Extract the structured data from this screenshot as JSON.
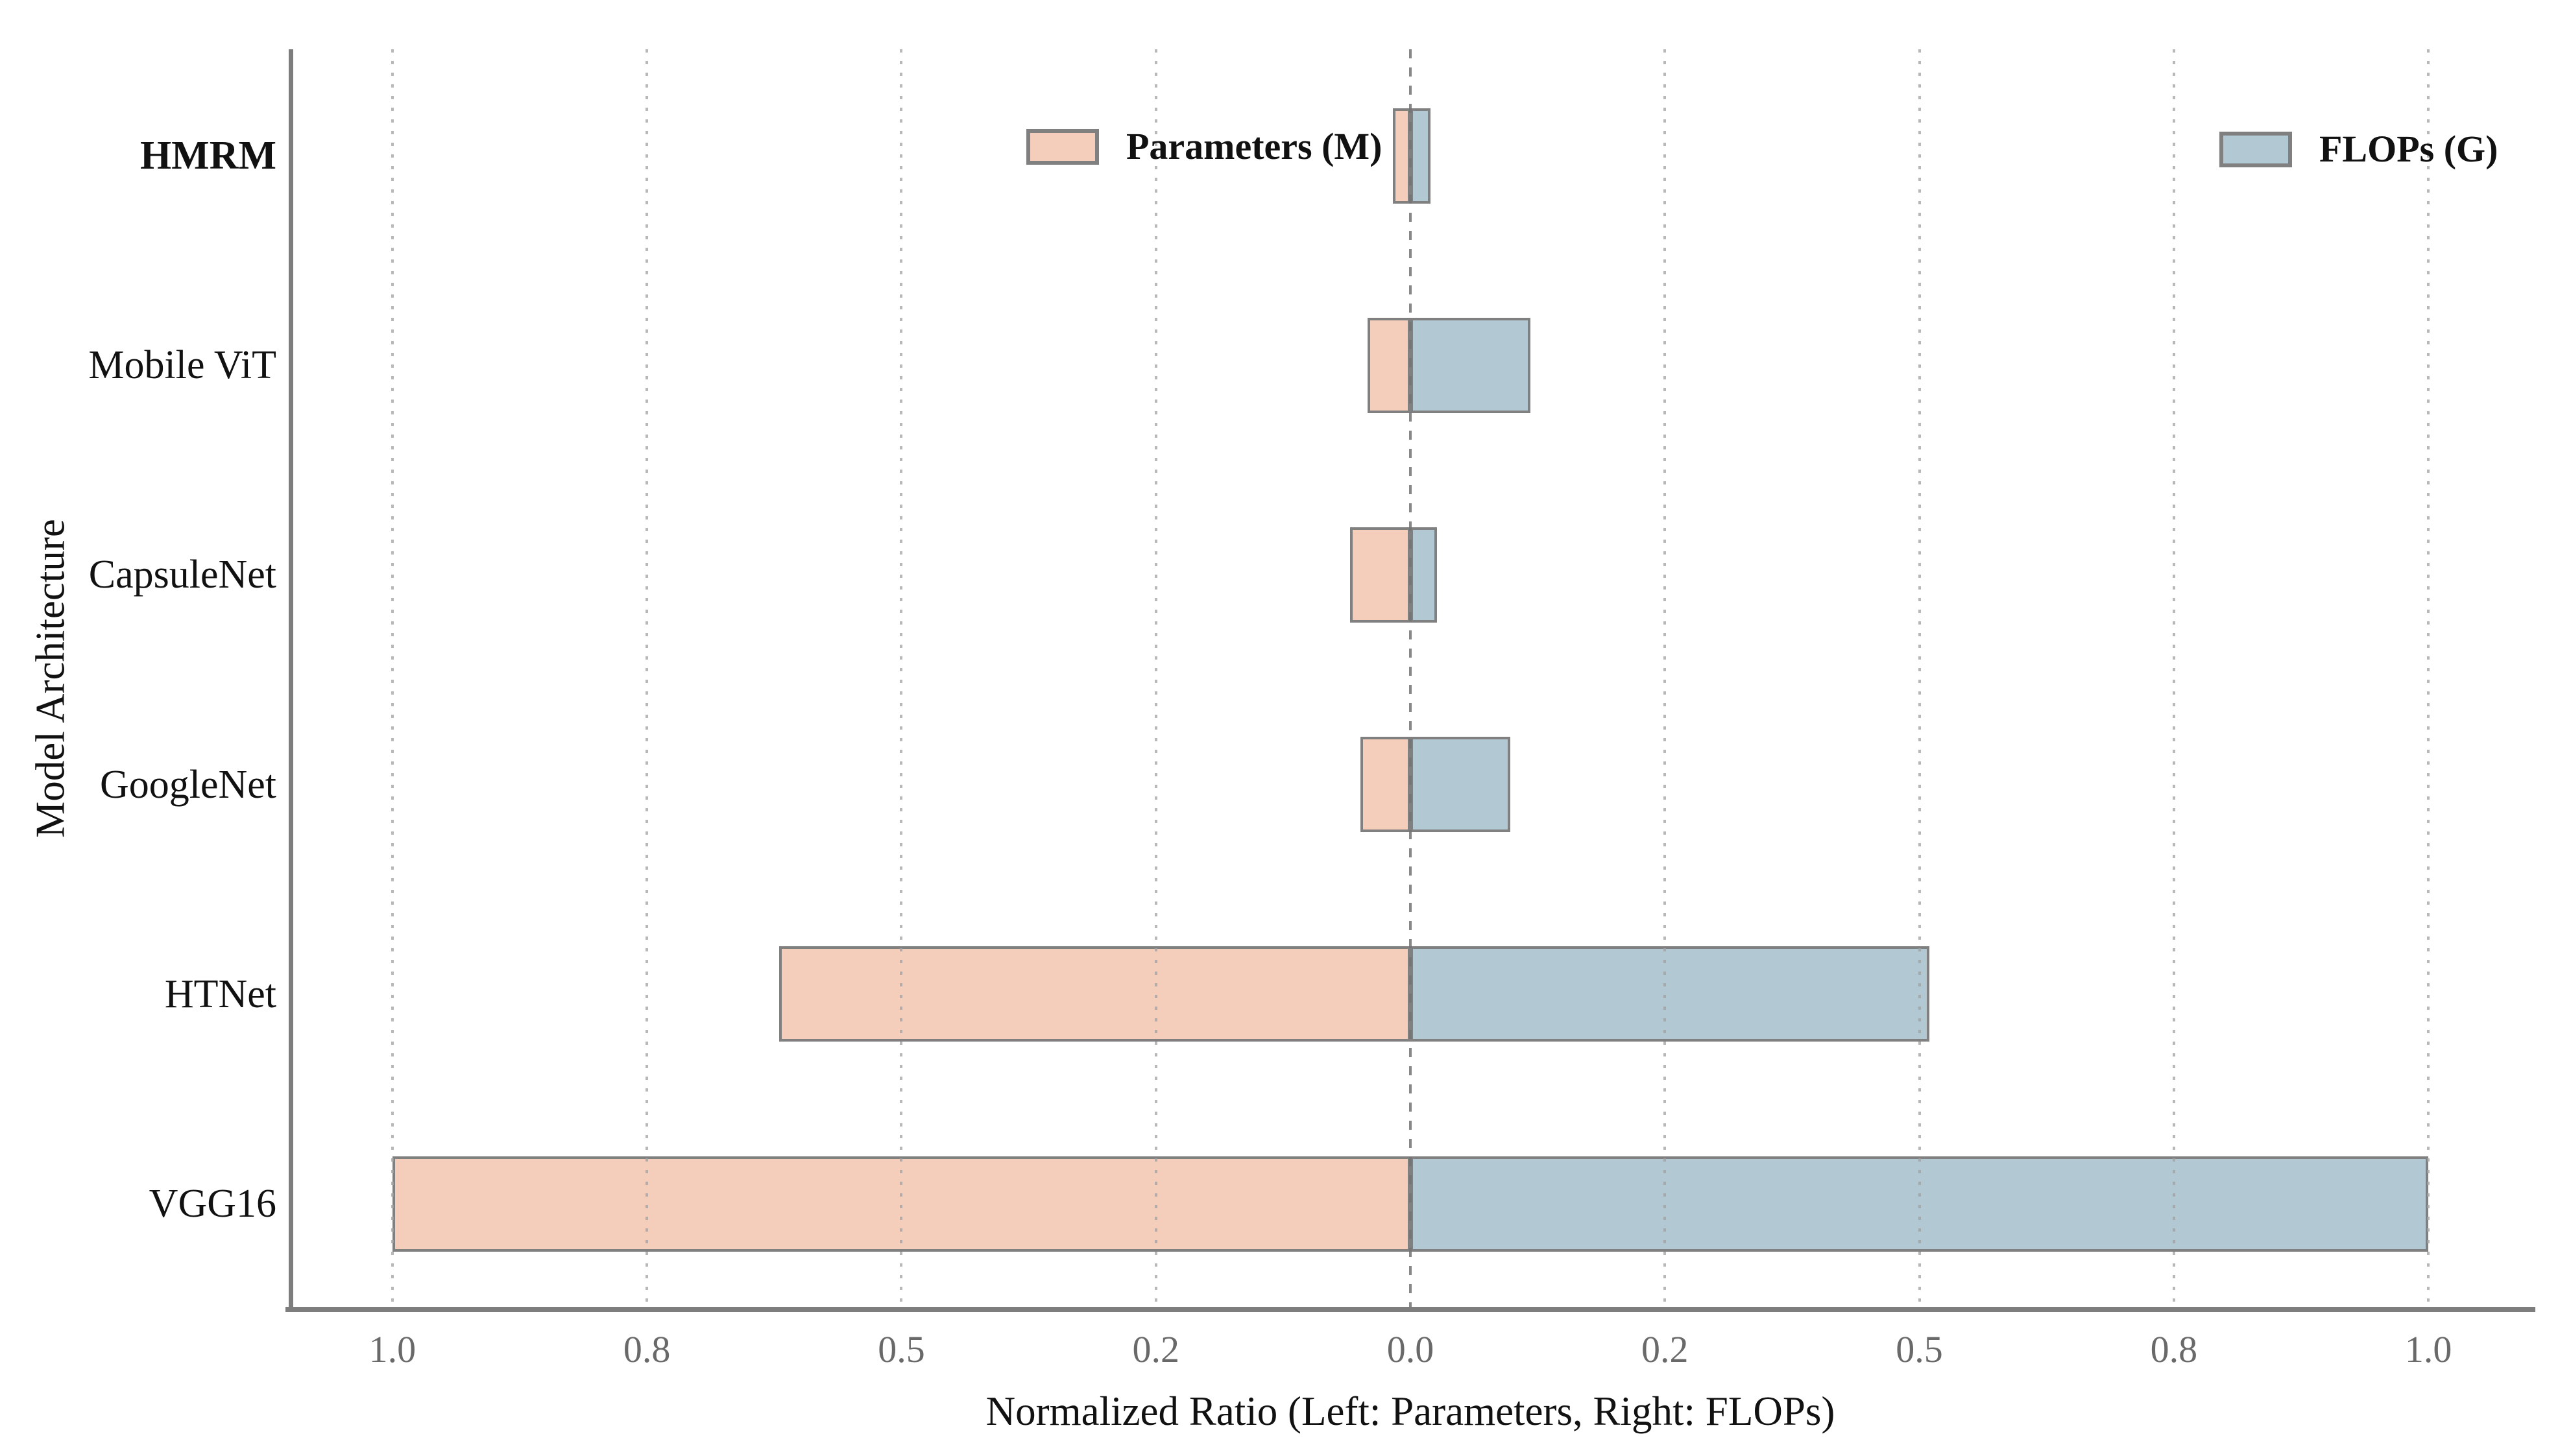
{
  "figure": {
    "background": "#ffffff",
    "xlabel": "Normalized Ratio (Left: Parameters, Right: FLOPs)",
    "ylabel": "Model Architecture",
    "legend": [
      {
        "label": "Parameters (M)",
        "color": "#F5CEBB"
      },
      {
        "label": "FLOPs (G)",
        "color": "#B2C8D2"
      }
    ],
    "colors": {
      "parameters_fill": "#F5CEBB",
      "flops_fill": "#B2C8D2",
      "bar_edge": "#808080",
      "spine": "#7d7d7d",
      "tick_label": "#696969",
      "gridline": "#a0a0a0"
    }
  },
  "chart_data": {
    "type": "bar",
    "orientation": "horizontal-diverging",
    "title": "",
    "xlabel": "Normalized Ratio (Left: Parameters, Right: FLOPs)",
    "ylabel": "Model Architecture",
    "categories": [
      "HMRM",
      "Mobile ViT",
      "CapsuleNet",
      "GoogleNet",
      "HTNet",
      "VGG16"
    ],
    "emphasized_category": "HMRM",
    "series": [
      {
        "name": "Parameters (M)",
        "side": "left",
        "color": "#F5CEBB",
        "values": [
          0.017,
          0.042,
          0.059,
          0.049,
          0.62,
          1.0
        ]
      },
      {
        "name": "FLOPs (G)",
        "side": "right",
        "color": "#B2C8D2",
        "values": [
          0.02,
          0.118,
          0.026,
          0.098,
          0.51,
          1.0
        ]
      }
    ],
    "x_ticks": [
      -1.0,
      -0.75,
      -0.5,
      -0.25,
      0.0,
      0.25,
      0.5,
      0.75,
      1.0
    ],
    "x_tick_labels": [
      "1.0",
      "0.8",
      "0.5",
      "0.2",
      "0.0",
      "0.2",
      "0.5",
      "0.8",
      "1.0"
    ],
    "xlim": [
      -1.1,
      1.1
    ],
    "grid": "vertical dotted gridlines at ticks, dashed line at 0, drawn over bars",
    "legend_position": "top, split left and right inside plot"
  }
}
